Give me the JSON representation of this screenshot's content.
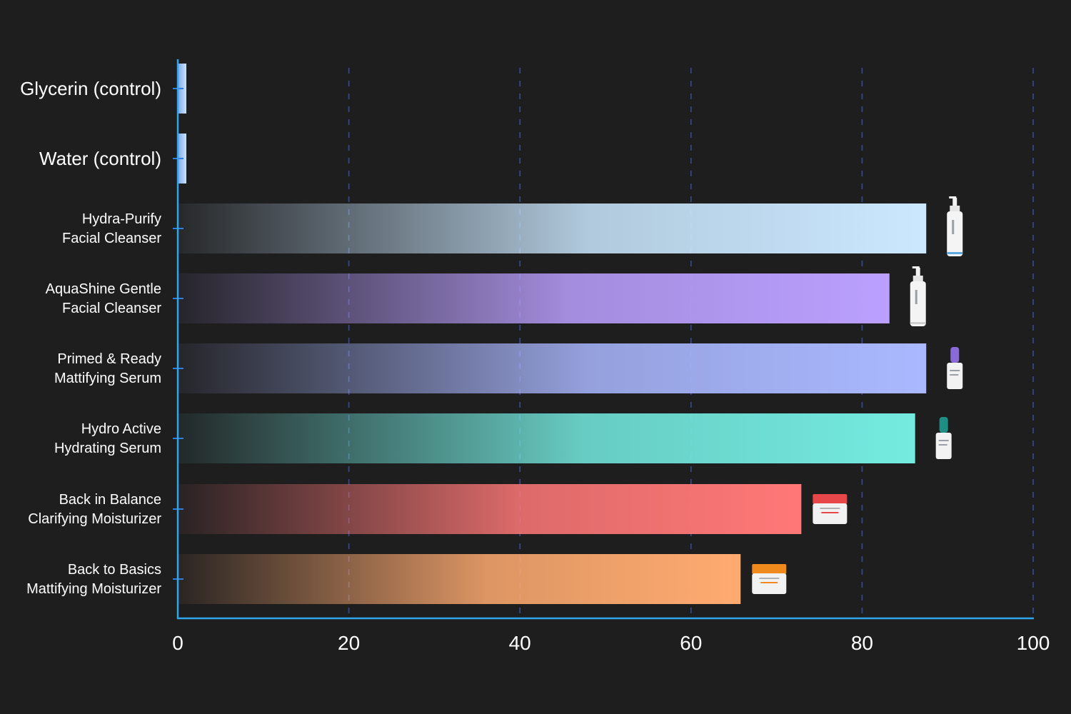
{
  "chart_data": {
    "type": "bar",
    "orientation": "horizontal",
    "categories": [
      [
        "Glycerin (control)"
      ],
      [
        "Water (control)"
      ],
      [
        "Hydra-Purify",
        "Facial Cleanser"
      ],
      [
        "AquaShine Gentle",
        "Facial Cleanser"
      ],
      [
        "Primed & Ready",
        "Mattifying Serum"
      ],
      [
        "Hydro Active",
        "Hydrating Serum"
      ],
      [
        "Back in Balance",
        "Clarifying Moisturizer"
      ],
      [
        "Back to Basics",
        "Mattifying Moisturizer"
      ]
    ],
    "values": [
      1,
      1,
      87.5,
      83.2,
      87.5,
      86.2,
      72.9,
      65.8
    ],
    "bar_colors": [
      "#c9e4ff",
      "#c9e4ff",
      "#cbe8ff",
      "#bba0ff",
      "#aab8ff",
      "#74ebe0",
      "#ff7877",
      "#ffab70"
    ],
    "product_icons": [
      "",
      "",
      "pump-bottle-white",
      "pump-bottle-white",
      "dropper-bottle-purple",
      "dropper-bottle-teal",
      "jar-red",
      "jar-orange"
    ],
    "x_ticks": [
      "0",
      "20",
      "40",
      "60",
      "80",
      "100"
    ],
    "xlim": [
      0,
      100
    ],
    "grid": "vertical-dashed",
    "axis_color": "#2fa7ea",
    "title": "",
    "xlabel": "",
    "ylabel": ""
  }
}
